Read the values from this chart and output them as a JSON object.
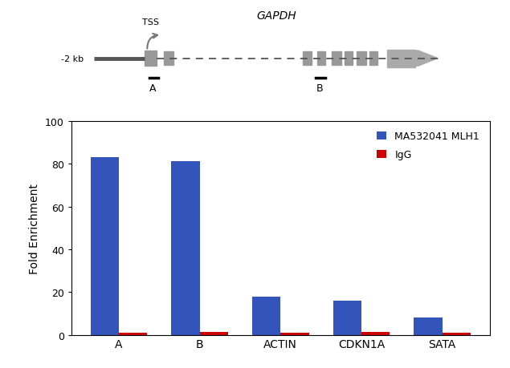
{
  "categories": [
    "A",
    "B",
    "ACTIN",
    "CDKN1A",
    "SATA"
  ],
  "mlh1_values": [
    83,
    81,
    18,
    16,
    8
  ],
  "igg_values": [
    1,
    1.2,
    1,
    1.2,
    1
  ],
  "mlh1_color": "#3355BB",
  "igg_color": "#CC0000",
  "ylabel": "Fold Enrichment",
  "ylim": [
    0,
    100
  ],
  "yticks": [
    0,
    20,
    40,
    60,
    80,
    100
  ],
  "legend_mlh1": "MA532041 MLH1",
  "legend_igg": "IgG",
  "bar_width": 0.35,
  "background_color": "#FFFFFF",
  "diagram_gene": "GAPDH",
  "diagram_label_neg2kb": "-2 kb",
  "diagram_label_tss": "TSS",
  "diagram_label_A": "A",
  "diagram_label_B": "B"
}
